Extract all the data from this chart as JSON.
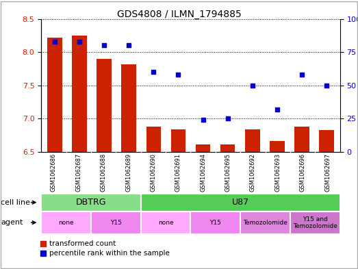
{
  "title": "GDS4808 / ILMN_1794885",
  "samples": [
    "GSM1062686",
    "GSM1062687",
    "GSM1062688",
    "GSM1062689",
    "GSM1062690",
    "GSM1062691",
    "GSM1062694",
    "GSM1062695",
    "GSM1062692",
    "GSM1062693",
    "GSM1062696",
    "GSM1062697"
  ],
  "bar_values": [
    8.22,
    8.25,
    7.9,
    7.82,
    6.88,
    6.84,
    6.61,
    6.61,
    6.84,
    6.66,
    6.88,
    6.83
  ],
  "scatter_values": [
    83,
    83,
    80,
    80,
    60,
    58,
    24,
    25,
    50,
    32,
    58,
    50
  ],
  "ylim_left": [
    6.5,
    8.5
  ],
  "ylim_right": [
    0,
    100
  ],
  "bar_color": "#cc2200",
  "scatter_color": "#0000cc",
  "cell_line_groups": [
    {
      "label": "DBTRG",
      "start": 0,
      "end": 3,
      "color": "#88dd88"
    },
    {
      "label": "U87",
      "start": 4,
      "end": 11,
      "color": "#55cc55"
    }
  ],
  "agent_groups": [
    {
      "label": "none",
      "start": 0,
      "end": 1,
      "color": "#ffaaff"
    },
    {
      "label": "Y15",
      "start": 2,
      "end": 3,
      "color": "#ee88ee"
    },
    {
      "label": "none",
      "start": 4,
      "end": 5,
      "color": "#ffaaff"
    },
    {
      "label": "Y15",
      "start": 6,
      "end": 7,
      "color": "#ee88ee"
    },
    {
      "label": "Temozolomide",
      "start": 8,
      "end": 9,
      "color": "#dd88dd"
    },
    {
      "label": "Y15 and\nTemozolomide",
      "start": 10,
      "end": 11,
      "color": "#cc77cc"
    }
  ],
  "cell_line_row_label": "cell line",
  "agent_row_label": "agent",
  "legend_bar_label": "transformed count",
  "legend_scatter_label": "percentile rank within the sample",
  "tick_label_color_left": "#cc2200",
  "tick_label_color_right": "#0000cc",
  "yticks_left": [
    6.5,
    7.0,
    7.5,
    8.0,
    8.5
  ],
  "yticks_right": [
    0,
    25,
    50,
    75,
    100
  ],
  "bar_width": 0.6
}
